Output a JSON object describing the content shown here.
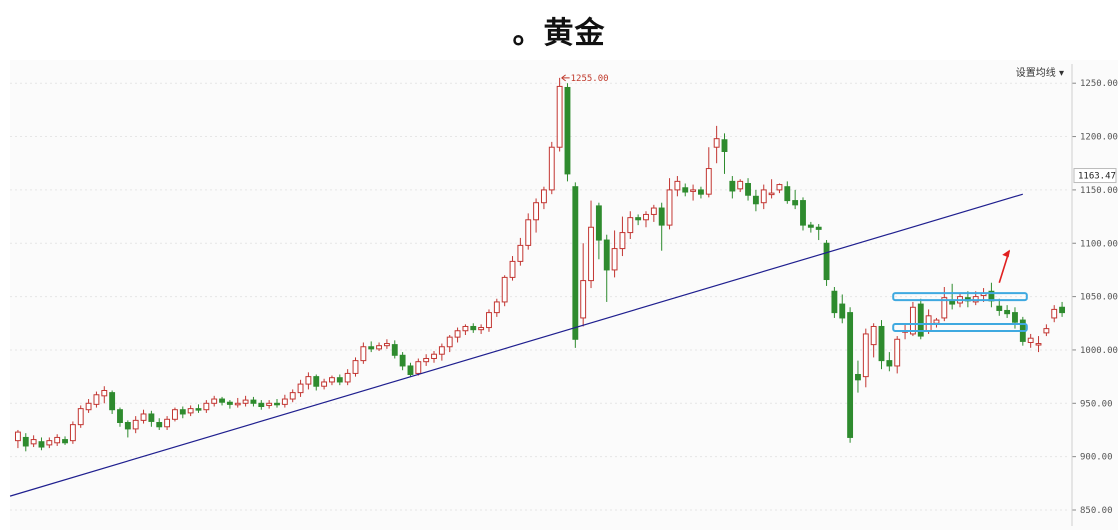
{
  "title": "。黄金",
  "toolbar": {
    "ma_setting_label": "设置均线 ▾"
  },
  "chart_data": {
    "type": "candlestick",
    "title": "。黄金",
    "y_ticks": [
      "1250.00",
      "1200.00",
      "1150.00",
      "1100.00",
      "1050.00",
      "1000.00",
      "950.00",
      "900.00",
      "850.00"
    ],
    "y_tick_values": [
      1250,
      1200,
      1150,
      1100,
      1050,
      1000,
      950,
      900,
      850
    ],
    "ylim": [
      835,
      1268
    ],
    "current_price_label": "1163.47",
    "current_price": 1163.47,
    "peak_label": "1255.00",
    "peak_value": 1255,
    "grid": true,
    "colors": {
      "up": "#c23531",
      "down": "#2e8b2e",
      "trendline": "#1f1f8f",
      "highlight": "#3fa9e0",
      "arrow": "#e02020"
    },
    "trendline": {
      "start_index": -1,
      "start_value": 863,
      "end_index": 128,
      "end_value": 1146
    },
    "support_zones": [
      {
        "start_index": 112,
        "end_index": 128,
        "value": 1050
      },
      {
        "start_index": 112,
        "end_index": 128,
        "value": 1021
      }
    ],
    "arrow": {
      "index": 125,
      "from_value": 1063,
      "to_value": 1093
    },
    "candles": [
      [
        915,
        923,
        908,
        925
      ],
      [
        918,
        910,
        905,
        922
      ],
      [
        912,
        916,
        909,
        920
      ],
      [
        914,
        909,
        906,
        918
      ],
      [
        911,
        915,
        908,
        918
      ],
      [
        913,
        918,
        910,
        921
      ],
      [
        916,
        913,
        911,
        919
      ],
      [
        915,
        930,
        912,
        933
      ],
      [
        930,
        945,
        927,
        948
      ],
      [
        944,
        950,
        941,
        954
      ],
      [
        949,
        958,
        946,
        961
      ],
      [
        957,
        962,
        950,
        966
      ],
      [
        960,
        944,
        940,
        962
      ],
      [
        944,
        932,
        928,
        946
      ],
      [
        932,
        926,
        918,
        934
      ],
      [
        926,
        934,
        922,
        938
      ],
      [
        934,
        940,
        931,
        944
      ],
      [
        940,
        933,
        928,
        943
      ],
      [
        932,
        928,
        925,
        936
      ],
      [
        928,
        935,
        925,
        938
      ],
      [
        935,
        944,
        933,
        946
      ],
      [
        944,
        940,
        936,
        947
      ],
      [
        941,
        945,
        938,
        948
      ],
      [
        945,
        944,
        941,
        949
      ],
      [
        944,
        950,
        941,
        953
      ],
      [
        950,
        954,
        947,
        957
      ],
      [
        954,
        951,
        948,
        956
      ],
      [
        951,
        949,
        945,
        953
      ],
      [
        949,
        950,
        946,
        955
      ],
      [
        950,
        953,
        947,
        957
      ],
      [
        953,
        950,
        947,
        956
      ],
      [
        950,
        947,
        944,
        953
      ],
      [
        948,
        950,
        945,
        953
      ],
      [
        950,
        949,
        946,
        954
      ],
      [
        949,
        954,
        946,
        958
      ],
      [
        954,
        960,
        951,
        963
      ],
      [
        960,
        968,
        956,
        972
      ],
      [
        968,
        975,
        963,
        979
      ],
      [
        975,
        966,
        962,
        977
      ],
      [
        966,
        970,
        963,
        973
      ],
      [
        970,
        974,
        967,
        976
      ],
      [
        974,
        970,
        967,
        977
      ],
      [
        970,
        978,
        967,
        982
      ],
      [
        978,
        990,
        975,
        993
      ],
      [
        990,
        1003,
        987,
        1007
      ],
      [
        1003,
        1001,
        998,
        1008
      ],
      [
        1001,
        1004,
        999,
        1007
      ],
      [
        1004,
        1006,
        1001,
        1010
      ],
      [
        1005,
        995,
        992,
        1009
      ],
      [
        995,
        985,
        981,
        998
      ],
      [
        985,
        977,
        975,
        988
      ],
      [
        978,
        989,
        976,
        992
      ],
      [
        989,
        992,
        985,
        996
      ],
      [
        992,
        996,
        988,
        999
      ],
      [
        996,
        1003,
        990,
        1006
      ],
      [
        1003,
        1012,
        998,
        1014
      ],
      [
        1012,
        1018,
        1007,
        1021
      ],
      [
        1018,
        1022,
        1014,
        1024
      ],
      [
        1022,
        1019,
        1016,
        1025
      ],
      [
        1019,
        1021,
        1015,
        1024
      ],
      [
        1021,
        1035,
        1017,
        1038
      ],
      [
        1035,
        1045,
        1031,
        1048
      ],
      [
        1045,
        1068,
        1041,
        1070
      ],
      [
        1068,
        1083,
        1065,
        1088
      ],
      [
        1083,
        1098,
        1079,
        1105
      ],
      [
        1098,
        1122,
        1094,
        1128
      ],
      [
        1122,
        1138,
        1110,
        1142
      ],
      [
        1138,
        1150,
        1132,
        1153
      ],
      [
        1150,
        1190,
        1146,
        1195
      ],
      [
        1190,
        1247,
        1186,
        1255
      ],
      [
        1246,
        1165,
        1158,
        1250
      ],
      [
        1153,
        1010,
        1002,
        1157
      ],
      [
        1030,
        1065,
        1022,
        1100
      ],
      [
        1065,
        1115,
        1058,
        1140
      ],
      [
        1135,
        1103,
        1085,
        1138
      ],
      [
        1103,
        1075,
        1045,
        1108
      ],
      [
        1075,
        1095,
        1068,
        1112
      ],
      [
        1095,
        1110,
        1088,
        1125
      ],
      [
        1110,
        1124,
        1104,
        1130
      ],
      [
        1124,
        1122,
        1117,
        1127
      ],
      [
        1122,
        1127,
        1115,
        1130
      ],
      [
        1127,
        1133,
        1120,
        1136
      ],
      [
        1133,
        1117,
        1093,
        1138
      ],
      [
        1117,
        1150,
        1113,
        1161
      ],
      [
        1150,
        1158,
        1144,
        1163
      ],
      [
        1152,
        1148,
        1144,
        1156
      ],
      [
        1149,
        1150,
        1140,
        1155
      ],
      [
        1150,
        1146,
        1142,
        1153
      ],
      [
        1146,
        1170,
        1143,
        1190
      ],
      [
        1190,
        1198,
        1175,
        1210
      ],
      [
        1197,
        1186,
        1165,
        1203
      ],
      [
        1158,
        1149,
        1142,
        1163
      ],
      [
        1151,
        1158,
        1148,
        1160
      ],
      [
        1156,
        1145,
        1140,
        1161
      ],
      [
        1144,
        1137,
        1130,
        1150
      ],
      [
        1138,
        1150,
        1132,
        1155
      ],
      [
        1146,
        1147,
        1142,
        1160
      ],
      [
        1150,
        1155,
        1147,
        1156
      ],
      [
        1153,
        1140,
        1137,
        1158
      ],
      [
        1140,
        1136,
        1132,
        1150
      ],
      [
        1140,
        1117,
        1112,
        1143
      ],
      [
        1117,
        1115,
        1110,
        1120
      ],
      [
        1115,
        1113,
        1103,
        1118
      ],
      [
        1100,
        1066,
        1060,
        1103
      ],
      [
        1055,
        1035,
        1030,
        1059
      ],
      [
        1043,
        1030,
        1025,
        1052
      ],
      [
        1035,
        918,
        913,
        1040
      ],
      [
        977,
        972,
        960,
        990
      ],
      [
        975,
        1015,
        965,
        1020
      ],
      [
        1005,
        1022,
        993,
        1025
      ],
      [
        1022,
        990,
        982,
        1028
      ],
      [
        990,
        985,
        980,
        998
      ],
      [
        985,
        1010,
        978,
        1013
      ],
      [
        1018,
        1018,
        1010,
        1025
      ],
      [
        1015,
        1040,
        1013,
        1045
      ],
      [
        1043,
        1013,
        1010,
        1048
      ],
      [
        1018,
        1032,
        1015,
        1038
      ],
      [
        1025,
        1028,
        1021,
        1030
      ],
      [
        1030,
        1049,
        1027,
        1059
      ],
      [
        1046,
        1043,
        1038,
        1062
      ],
      [
        1044,
        1050,
        1040,
        1053
      ],
      [
        1049,
        1046,
        1040,
        1055
      ],
      [
        1045,
        1050,
        1042,
        1055
      ],
      [
        1051,
        1053,
        1045,
        1058
      ],
      [
        1055,
        1046,
        1040,
        1063
      ],
      [
        1041,
        1037,
        1032,
        1048
      ],
      [
        1037,
        1034,
        1030,
        1042
      ],
      [
        1035,
        1026,
        1020,
        1040
      ],
      [
        1028,
        1008,
        1004,
        1031
      ],
      [
        1007,
        1011,
        1002,
        1015
      ],
      [
        1006,
        1006,
        998,
        1013
      ],
      [
        1016,
        1020,
        1013,
        1024
      ],
      [
        1030,
        1038,
        1026,
        1042
      ],
      [
        1040,
        1035,
        1031,
        1045
      ]
    ]
  }
}
